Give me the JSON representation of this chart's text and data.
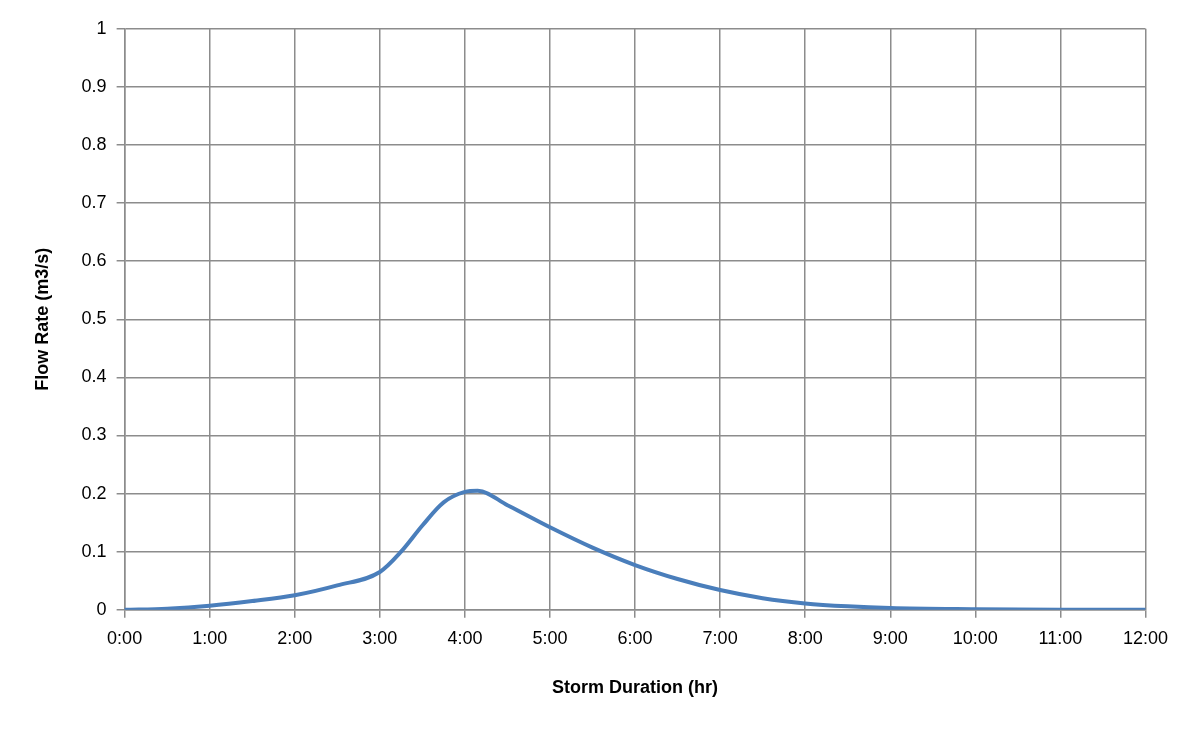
{
  "chart_data": {
    "type": "line",
    "xlabel": "Storm Duration (hr)",
    "ylabel": "Flow Rate (m3/s)",
    "x": [
      0,
      0.5,
      1,
      1.5,
      2,
      2.5,
      3,
      3.25,
      3.5,
      3.75,
      4,
      4.15,
      4.5,
      5,
      5.5,
      6,
      6.5,
      7,
      7.5,
      8,
      8.5,
      9,
      10,
      11,
      12
    ],
    "series": [
      {
        "color": "#4a7ebb",
        "values": [
          0,
          0.002,
          0.007,
          0.015,
          0.025,
          0.042,
          0.065,
          0.1,
          0.145,
          0.185,
          0.203,
          0.205,
          0.18,
          0.142,
          0.107,
          0.077,
          0.053,
          0.034,
          0.02,
          0.011,
          0.006,
          0.003,
          0.001,
          0,
          0
        ]
      }
    ],
    "xlim": [
      0,
      12
    ],
    "xticks": [
      {
        "value": 0,
        "label": "0:00"
      },
      {
        "value": 1,
        "label": "1:00"
      },
      {
        "value": 2,
        "label": "2:00"
      },
      {
        "value": 3,
        "label": "3:00"
      },
      {
        "value": 4,
        "label": "4:00"
      },
      {
        "value": 5,
        "label": "5:00"
      },
      {
        "value": 6,
        "label": "6:00"
      },
      {
        "value": 7,
        "label": "7:00"
      },
      {
        "value": 8,
        "label": "8:00"
      },
      {
        "value": 9,
        "label": "9:00"
      },
      {
        "value": 10,
        "label": "10:00"
      },
      {
        "value": 11,
        "label": "11:00"
      },
      {
        "value": 12,
        "label": "12:00"
      }
    ],
    "ylim": [
      0,
      1
    ],
    "yticks": [
      0,
      0.1,
      0.2,
      0.3,
      0.4,
      0.5,
      0.6,
      0.7,
      0.8,
      0.9,
      1
    ],
    "grid": true,
    "legend": false,
    "marker": "none",
    "line_style": "solid"
  }
}
